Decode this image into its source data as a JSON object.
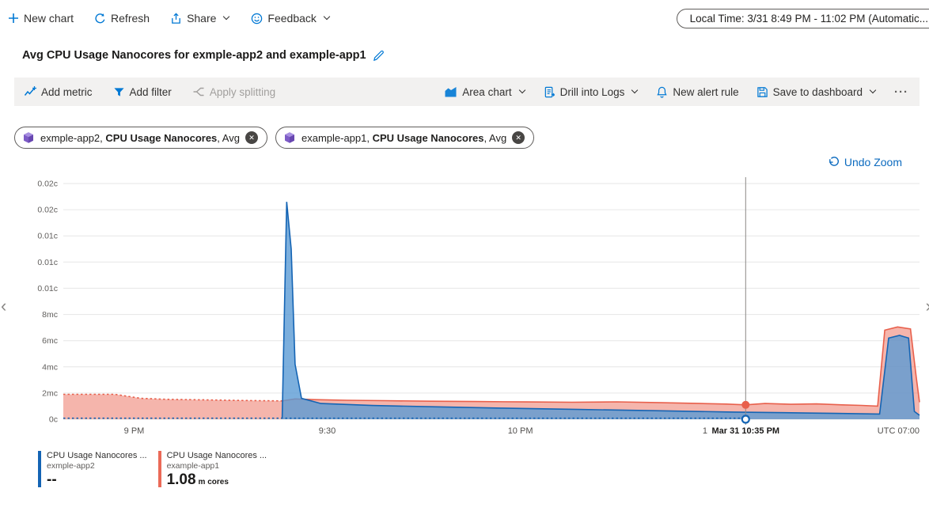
{
  "topbar": {
    "new_chart": "New chart",
    "refresh": "Refresh",
    "share": "Share",
    "feedback": "Feedback",
    "time_picker": "Local Time: 3/31 8:49 PM - 11:02 PM (Automatic..."
  },
  "title": "Avg CPU Usage Nanocores for exmple-app2 and example-app1",
  "toolbar": {
    "add_metric": "Add metric",
    "add_filter": "Add filter",
    "apply_splitting": "Apply splitting",
    "chart_type": "Area chart",
    "drill_into_logs": "Drill into Logs",
    "new_alert_rule": "New alert rule",
    "save_to_dashboard": "Save to dashboard",
    "more": "···"
  },
  "pills": [
    {
      "scope": "exmple-app2,",
      "metric": "CPU Usage Nanocores",
      "agg": ", Avg"
    },
    {
      "scope": "example-app1,",
      "metric": "CPU Usage Nanocores",
      "agg": ", Avg"
    }
  ],
  "undo_zoom": "Undo Zoom",
  "nav": {
    "prev": "‹",
    "next": "›"
  },
  "icons": {
    "close": "✕"
  },
  "legend": [
    {
      "metric": "CPU Usage Nanocores ...",
      "resource": "exmple-app2",
      "value": "--",
      "unit": "",
      "color": "#1464b4"
    },
    {
      "metric": "CPU Usage Nanocores ...",
      "resource": "example-app1",
      "value": "1.08",
      "unit": "m cores",
      "color": "#eb6a58"
    }
  ],
  "chart_data": {
    "type": "area",
    "title": "Avg CPU Usage Nanocores for exmple-app2 and example-app1",
    "y_unit": "cores (c) / millicores (mc)",
    "y_range_mc": [
      0,
      18
    ],
    "y_gridlines_mc": [
      18,
      16,
      14,
      12,
      10,
      8,
      6,
      4,
      2,
      0
    ],
    "y_tick_labels": [
      "0.02c",
      "0.02c",
      "0.01c",
      "0.01c",
      "0.01c",
      "8mc",
      "6mc",
      "4mc",
      "2mc",
      "0c"
    ],
    "x_unit": "minutes since 8:49 PM local time",
    "x_range": [
      0,
      133
    ],
    "x_ticks": [
      {
        "t": 11,
        "label": "9 PM"
      },
      {
        "t": 41,
        "label": "9:30"
      },
      {
        "t": 71,
        "label": "10 PM"
      },
      {
        "t": 101,
        "label": "10:30"
      }
    ],
    "x_end_label": "UTC 07:00",
    "crosshair": {
      "t": 106,
      "label": "Mar 31 10:35 PM",
      "markers": [
        {
          "series": "example-app1",
          "mc": 1.1,
          "color": "#e8604c",
          "style": "filled"
        },
        {
          "series": "exmple-app2",
          "mc": 0,
          "color": "#1464b4",
          "style": "open"
        }
      ]
    },
    "series": [
      {
        "name": "CPU Usage Nanocores (Avg), example-app1",
        "color": "#e8604c",
        "fill": "#ec6b59",
        "fill_opacity": 0.5,
        "fill_points": "all",
        "dotted_points": [
          [
            0,
            1.9
          ],
          [
            8,
            1.9
          ],
          [
            10,
            1.75
          ],
          [
            12,
            1.6
          ],
          [
            16,
            1.52
          ],
          [
            22,
            1.48
          ],
          [
            28,
            1.43
          ],
          [
            34,
            1.4
          ]
        ],
        "solid_points": [
          [
            34,
            1.4
          ],
          [
            36,
            1.55
          ],
          [
            39,
            1.5
          ],
          [
            44,
            1.45
          ],
          [
            50,
            1.42
          ],
          [
            57,
            1.38
          ],
          [
            64,
            1.35
          ],
          [
            72,
            1.32
          ],
          [
            79,
            1.3
          ],
          [
            86,
            1.33
          ],
          [
            93,
            1.26
          ],
          [
            99,
            1.2
          ],
          [
            103,
            1.16
          ],
          [
            106,
            1.1
          ],
          [
            109,
            1.2
          ],
          [
            113,
            1.14
          ],
          [
            117,
            1.17
          ],
          [
            121,
            1.1
          ],
          [
            124,
            1.06
          ],
          [
            126.5,
            1.0
          ],
          [
            127.6,
            6.8
          ],
          [
            129.6,
            7.05
          ],
          [
            131.6,
            6.9
          ],
          [
            132.5,
            3.2
          ],
          [
            133,
            1.3
          ]
        ]
      },
      {
        "name": "CPU Usage Nanocores (Avg), exmple-app2",
        "color": "#1464b4",
        "fill": "#5b9bd5",
        "fill_opacity": 0.8,
        "fill_points": "solid",
        "dotted_points": [
          [
            0,
            0.08
          ],
          [
            105.6,
            0.08
          ]
        ],
        "solid_points": [
          [
            34,
            0.1
          ],
          [
            34.7,
            16.6
          ],
          [
            35.4,
            13
          ],
          [
            36,
            4.2
          ],
          [
            37,
            1.6
          ],
          [
            40,
            1.2
          ],
          [
            48,
            1.05
          ],
          [
            58,
            0.95
          ],
          [
            68,
            0.85
          ],
          [
            80,
            0.75
          ],
          [
            92,
            0.65
          ],
          [
            104,
            0.55
          ],
          [
            112,
            0.5
          ],
          [
            120,
            0.45
          ],
          [
            126.8,
            0.4
          ],
          [
            128.2,
            6.2
          ],
          [
            129.9,
            6.4
          ],
          [
            131.3,
            6.2
          ],
          [
            132.2,
            0.6
          ],
          [
            133,
            0.3
          ]
        ]
      }
    ]
  }
}
